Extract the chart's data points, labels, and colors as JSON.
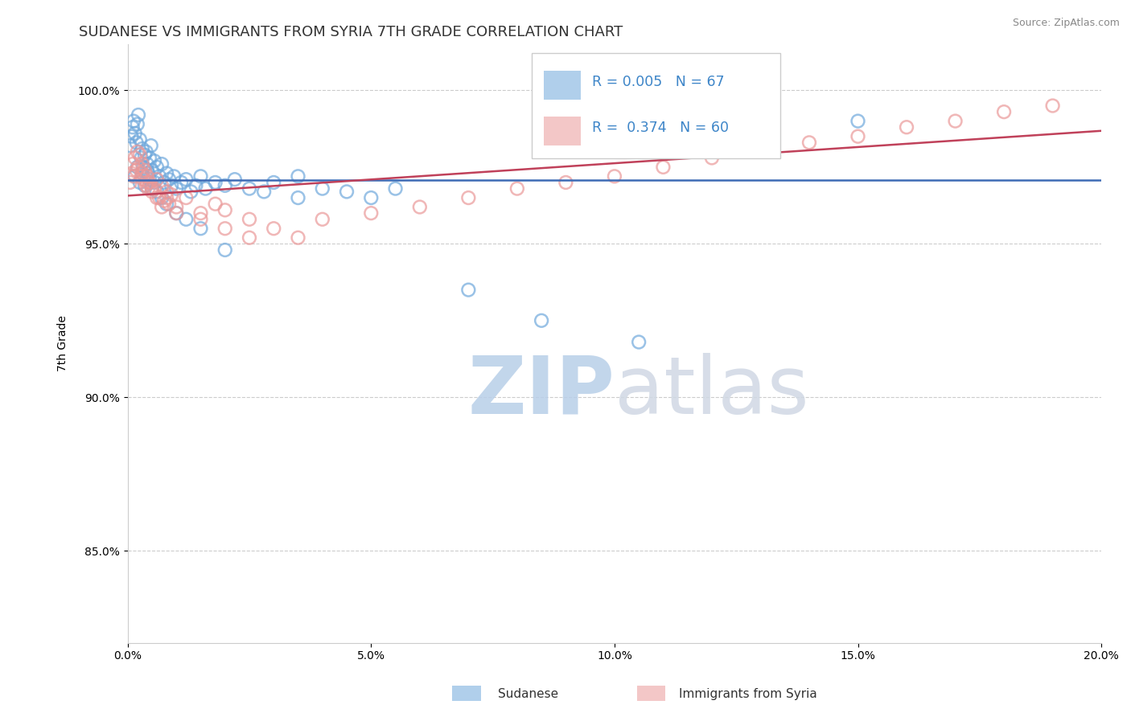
{
  "title": "SUDANESE VS IMMIGRANTS FROM SYRIA 7TH GRADE CORRELATION CHART",
  "source_text": "Source: ZipAtlas.com",
  "ylabel": "7th Grade",
  "xlim": [
    0.0,
    20.0
  ],
  "ylim": [
    82.0,
    101.5
  ],
  "x_ticks": [
    0.0,
    5.0,
    10.0,
    15.0,
    20.0
  ],
  "x_tick_labels": [
    "0.0%",
    "5.0%",
    "10.0%",
    "15.0%",
    "20.0%"
  ],
  "y_ticks": [
    85.0,
    90.0,
    95.0,
    100.0
  ],
  "y_tick_labels": [
    "85.0%",
    "90.0%",
    "95.0%",
    "100.0%"
  ],
  "blue_color": "#6fa8dc",
  "pink_color": "#ea9999",
  "blue_line_color": "#3d6bb5",
  "pink_line_color": "#c0415a",
  "legend_R_blue": "R = 0.005",
  "legend_N_blue": "N = 67",
  "legend_R_pink": "R =  0.374",
  "legend_N_pink": "N = 60",
  "watermark": "ZIPatlas",
  "watermark_color": "#c8d8ea",
  "title_fontsize": 13,
  "axis_label_fontsize": 10,
  "tick_fontsize": 10,
  "blue_scatter_x": [
    0.05,
    0.08,
    0.1,
    0.12,
    0.15,
    0.18,
    0.2,
    0.22,
    0.25,
    0.28,
    0.3,
    0.32,
    0.35,
    0.38,
    0.4,
    0.42,
    0.45,
    0.48,
    0.5,
    0.55,
    0.6,
    0.65,
    0.7,
    0.75,
    0.8,
    0.85,
    0.9,
    0.95,
    1.0,
    1.1,
    1.2,
    1.3,
    1.4,
    1.5,
    1.6,
    1.8,
    2.0,
    2.2,
    2.5,
    2.8,
    3.0,
    3.5,
    4.0,
    4.5,
    5.0,
    0.15,
    0.2,
    0.25,
    0.3,
    0.35,
    0.4,
    0.45,
    0.5,
    0.55,
    0.6,
    0.7,
    0.8,
    1.0,
    1.2,
    1.5,
    2.0,
    7.0,
    8.5,
    10.5,
    3.5,
    5.5,
    15.0
  ],
  "blue_scatter_y": [
    98.2,
    98.5,
    98.8,
    99.0,
    98.6,
    98.3,
    98.9,
    99.2,
    98.4,
    97.8,
    98.1,
    97.5,
    97.9,
    98.0,
    97.6,
    97.3,
    97.8,
    98.2,
    97.4,
    97.7,
    97.5,
    97.2,
    97.6,
    97.0,
    97.3,
    97.1,
    96.9,
    97.2,
    96.8,
    97.0,
    97.1,
    96.7,
    96.9,
    97.2,
    96.8,
    97.0,
    96.9,
    97.1,
    96.8,
    96.7,
    97.0,
    96.5,
    96.8,
    96.7,
    96.5,
    97.2,
    97.5,
    97.0,
    97.3,
    96.9,
    97.4,
    97.1,
    96.8,
    97.0,
    96.7,
    96.5,
    96.3,
    96.0,
    95.8,
    95.5,
    94.8,
    93.5,
    92.5,
    91.8,
    97.2,
    96.8,
    99.0
  ],
  "pink_scatter_x": [
    0.05,
    0.08,
    0.1,
    0.12,
    0.15,
    0.18,
    0.2,
    0.22,
    0.25,
    0.28,
    0.3,
    0.32,
    0.35,
    0.38,
    0.4,
    0.42,
    0.45,
    0.5,
    0.55,
    0.6,
    0.65,
    0.7,
    0.75,
    0.8,
    0.85,
    0.9,
    1.0,
    1.2,
    1.5,
    1.8,
    2.0,
    2.5,
    3.0,
    3.5,
    4.0,
    5.0,
    6.0,
    7.0,
    8.0,
    9.0,
    10.0,
    11.0,
    12.0,
    13.0,
    14.0,
    15.0,
    16.0,
    17.0,
    18.0,
    19.0,
    0.3,
    0.4,
    0.5,
    0.6,
    0.7,
    0.8,
    1.0,
    1.5,
    2.0,
    2.5
  ],
  "pink_scatter_y": [
    97.0,
    97.3,
    97.6,
    97.2,
    97.8,
    97.4,
    98.0,
    97.5,
    97.9,
    97.2,
    97.6,
    97.1,
    97.4,
    96.9,
    97.2,
    96.8,
    97.0,
    96.7,
    96.8,
    97.1,
    96.5,
    96.9,
    96.4,
    96.7,
    96.3,
    96.6,
    96.2,
    96.5,
    96.0,
    96.3,
    96.1,
    95.8,
    95.5,
    95.2,
    95.8,
    96.0,
    96.2,
    96.5,
    96.8,
    97.0,
    97.2,
    97.5,
    97.8,
    98.0,
    98.3,
    98.5,
    98.8,
    99.0,
    99.3,
    99.5,
    97.3,
    97.0,
    96.8,
    96.5,
    96.2,
    96.5,
    96.0,
    95.8,
    95.5,
    95.2
  ],
  "background_color": "#ffffff",
  "grid_color": "#cccccc"
}
